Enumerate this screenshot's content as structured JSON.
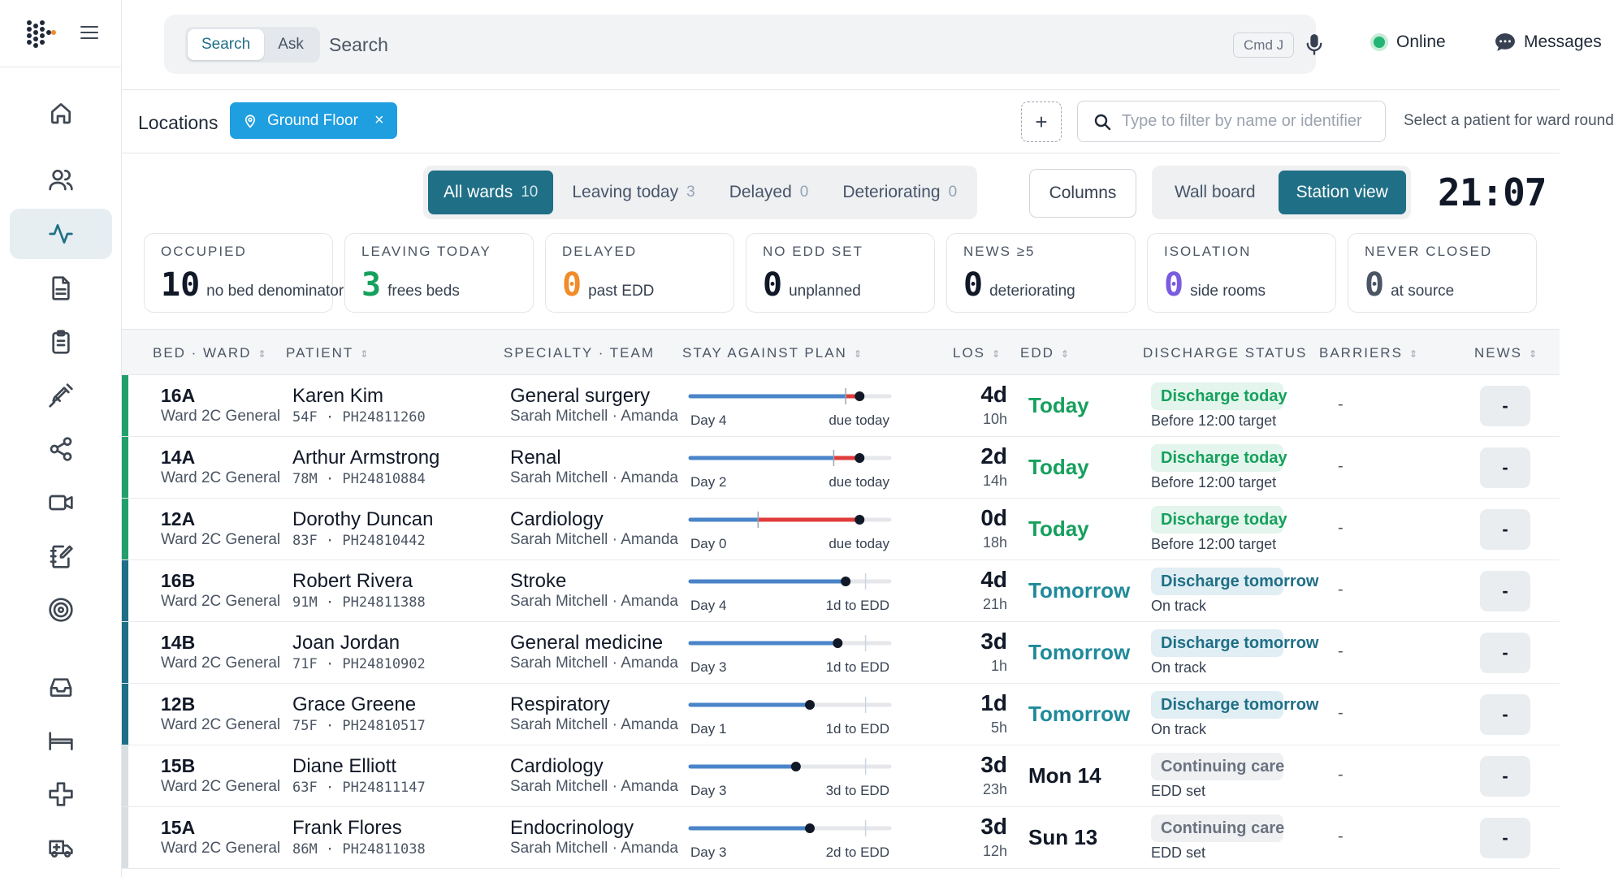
{
  "search": {
    "mode_search": "Search",
    "mode_ask": "Ask",
    "placeholder": "Search",
    "shortcut": "Cmd J"
  },
  "status": {
    "online_label": "Online",
    "messages_label": "Messages"
  },
  "locations": {
    "label": "Locations",
    "chip": "Ground Floor",
    "filter_placeholder": "Type to filter by name or identifier",
    "select_hint": "Select a patient for ward round"
  },
  "tabs": [
    {
      "label": "All wards",
      "count": "10"
    },
    {
      "label": "Leaving today",
      "count": "3"
    },
    {
      "label": "Delayed",
      "count": "0"
    },
    {
      "label": "Deteriorating",
      "count": "0"
    }
  ],
  "columns_label": "Columns",
  "views": {
    "wall": "Wall board",
    "station": "Station view"
  },
  "clock": "21:07",
  "stats": [
    {
      "label": "OCCUPIED",
      "value": "10",
      "sub": "no bed denominator",
      "color": "#111827"
    },
    {
      "label": "LEAVING TODAY",
      "value": "3",
      "sub": "frees beds",
      "color": "#16a05d"
    },
    {
      "label": "DELAYED",
      "value": "0",
      "sub": "past EDD",
      "color": "#f08c2a"
    },
    {
      "label": "NO EDD SET",
      "value": "0",
      "sub": "unplanned",
      "color": "#111827"
    },
    {
      "label": "NEWS ≥5",
      "value": "0",
      "sub": "deteriorating",
      "color": "#111827"
    },
    {
      "label": "ISOLATION",
      "value": "0",
      "sub": "side rooms",
      "color": "#7b5ce0"
    },
    {
      "label": "NEVER CLOSED",
      "value": "0",
      "sub": "at source",
      "color": "#4b5563"
    }
  ],
  "table": {
    "headers": [
      "BED · WARD",
      "PATIENT",
      "SPECIALTY · TEAM",
      "STAY AGAINST PLAN",
      "LOS",
      "EDD",
      "DISCHARGE STATUS",
      "BARRIERS",
      "NEWS"
    ],
    "rows": [
      {
        "bed": "16A",
        "ward": "Ward 2C General",
        "name": "Karen Kim",
        "meta": "54F · PH24811260",
        "specialty": "General surgery",
        "team": "Sarah Mitchell · Amanda",
        "day_label": "Day 4",
        "plan_label": "due today",
        "los": "4d",
        "los_h": "10h",
        "edd": "Today",
        "status": "Discharge today",
        "status_note": "Before 12:00 target",
        "barriers": "-",
        "news": "-",
        "stripe": "#22a06b",
        "edd_color": "#16a05d",
        "chip_bg": "#e3f5ec",
        "chip_fg": "#16a05d",
        "progress": 0.85,
        "plan_mark": 0.78,
        "over": true
      },
      {
        "bed": "14A",
        "ward": "Ward 2C General",
        "name": "Arthur Armstrong",
        "meta": "78M · PH24810884",
        "specialty": "Renal",
        "team": "Sarah Mitchell · Amanda",
        "day_label": "Day 2",
        "plan_label": "due today",
        "los": "2d",
        "los_h": "14h",
        "edd": "Today",
        "status": "Discharge today",
        "status_note": "Before 12:00 target",
        "barriers": "-",
        "news": "-",
        "stripe": "#22a06b",
        "edd_color": "#16a05d",
        "chip_bg": "#e3f5ec",
        "chip_fg": "#16a05d",
        "progress": 0.85,
        "plan_mark": 0.72,
        "over": true
      },
      {
        "bed": "12A",
        "ward": "Ward 2C General",
        "name": "Dorothy Duncan",
        "meta": "83F · PH24810442",
        "specialty": "Cardiology",
        "team": "Sarah Mitchell · Amanda",
        "day_label": "Day 0",
        "plan_label": "due today",
        "los": "0d",
        "los_h": "18h",
        "edd": "Today",
        "status": "Discharge today",
        "status_note": "Before 12:00 target",
        "barriers": "-",
        "news": "-",
        "stripe": "#22a06b",
        "edd_color": "#16a05d",
        "chip_bg": "#e3f5ec",
        "chip_fg": "#16a05d",
        "progress": 0.85,
        "plan_mark": 0.34,
        "over": true
      },
      {
        "bed": "16B",
        "ward": "Ward 2C General",
        "name": "Robert Rivera",
        "meta": "91M · PH24811388",
        "specialty": "Stroke",
        "team": "Sarah Mitchell · Amanda",
        "day_label": "Day 4",
        "plan_label": "1d to EDD",
        "los": "4d",
        "los_h": "21h",
        "edd": "Tomorrow",
        "status": "Discharge tomorrow",
        "status_note": "On track",
        "barriers": "-",
        "news": "-",
        "stripe": "#1f6f86",
        "edd_color": "#1f8a9a",
        "chip_bg": "#e1eef3",
        "chip_fg": "#1f6f86",
        "progress": 0.78,
        "plan_mark": 0.88,
        "over": false
      },
      {
        "bed": "14B",
        "ward": "Ward 2C General",
        "name": "Joan Jordan",
        "meta": "71F · PH24810902",
        "specialty": "General medicine",
        "team": "Sarah Mitchell · Amanda",
        "day_label": "Day 3",
        "plan_label": "1d to EDD",
        "los": "3d",
        "los_h": "1h",
        "edd": "Tomorrow",
        "status": "Discharge tomorrow",
        "status_note": "On track",
        "barriers": "-",
        "news": "-",
        "stripe": "#1f6f86",
        "edd_color": "#1f8a9a",
        "chip_bg": "#e1eef3",
        "chip_fg": "#1f6f86",
        "progress": 0.74,
        "plan_mark": 0.88,
        "over": false
      },
      {
        "bed": "12B",
        "ward": "Ward 2C General",
        "name": "Grace Greene",
        "meta": "75F · PH24810517",
        "specialty": "Respiratory",
        "team": "Sarah Mitchell · Amanda",
        "day_label": "Day 1",
        "plan_label": "1d to EDD",
        "los": "1d",
        "los_h": "5h",
        "edd": "Tomorrow",
        "status": "Discharge tomorrow",
        "status_note": "On track",
        "barriers": "-",
        "news": "-",
        "stripe": "#1f6f86",
        "edd_color": "#1f8a9a",
        "chip_bg": "#e1eef3",
        "chip_fg": "#1f6f86",
        "progress": 0.6,
        "plan_mark": 0.88,
        "over": false
      },
      {
        "bed": "15B",
        "ward": "Ward 2C General",
        "name": "Diane Elliott",
        "meta": "63F · PH24811147",
        "specialty": "Cardiology",
        "team": "Sarah Mitchell · Amanda",
        "day_label": "Day 3",
        "plan_label": "3d to EDD",
        "los": "3d",
        "los_h": "23h",
        "edd": "Mon 14",
        "status": "Continuing care",
        "status_note": "EDD set",
        "barriers": "-",
        "news": "-",
        "stripe": "#d9dee3",
        "edd_color": "#111827",
        "chip_bg": "#eef0f2",
        "chip_fg": "#6b7280",
        "progress": 0.53,
        "plan_mark": 0.88,
        "over": false
      },
      {
        "bed": "15A",
        "ward": "Ward 2C General",
        "name": "Frank Flores",
        "meta": "86M · PH24811038",
        "specialty": "Endocrinology",
        "team": "Sarah Mitchell · Amanda",
        "day_label": "Day 3",
        "plan_label": "2d to EDD",
        "los": "3d",
        "los_h": "12h",
        "edd": "Sun 13",
        "status": "Continuing care",
        "status_note": "EDD set",
        "barriers": "-",
        "news": "-",
        "stripe": "#d9dee3",
        "edd_color": "#111827",
        "chip_bg": "#eef0f2",
        "chip_fg": "#6b7280",
        "progress": 0.6,
        "plan_mark": 0.88,
        "over": false
      }
    ]
  }
}
